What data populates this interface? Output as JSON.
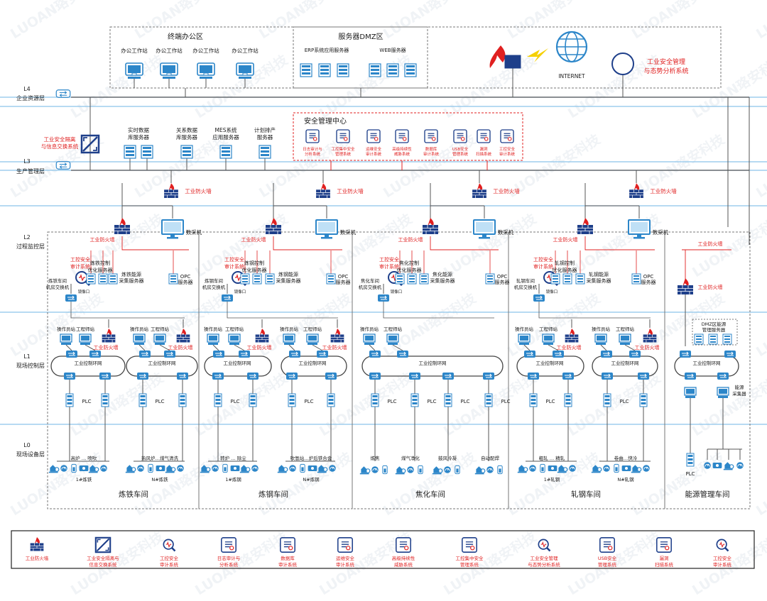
{
  "layers": {
    "l4": {
      "code": "L4",
      "name": "企业资源层"
    },
    "l3": {
      "code": "L3",
      "name": "生产管理层"
    },
    "l2": {
      "code": "L2",
      "name": "过程监控层"
    },
    "l1": {
      "code": "L1",
      "name": "现场控制层"
    },
    "l0": {
      "code": "L0",
      "name": "现场设备层"
    }
  },
  "top": {
    "office_zone": "终端办公区",
    "office_station": "办公工作站",
    "dmz_zone": "服务器DMZ区",
    "erp": "ERP系统应用服务器",
    "web": "WEB服务器",
    "internet": "INTERNET",
    "situation_1": "工业安全管理",
    "situation_2": "与态势分析系统"
  },
  "l3": {
    "isolation_1": "工业安全隔离",
    "isolation_2": "与信息交换系统",
    "rt1": "实时数据",
    "rt2": "库服务器",
    "rel1": "关系数据",
    "rel2": "库服务器",
    "mes1": "MES系统",
    "mes2": "应用服务器",
    "plan1": "计划排产",
    "plan2": "服务器"
  },
  "soc": {
    "title": "安全管理中心",
    "items": [
      {
        "l1": "日志审计与",
        "l2": "分析系统",
        "icon": "log-audit"
      },
      {
        "l1": "工控集中安全",
        "l2": "管理系统",
        "icon": "central-mgmt"
      },
      {
        "l1": "运维安全",
        "l2": "审计系统",
        "icon": "ops-audit"
      },
      {
        "l1": "高级持续性",
        "l2": "威胁系统",
        "icon": "apt"
      },
      {
        "l1": "数据库",
        "l2": "审计系统",
        "icon": "db-audit"
      },
      {
        "l1": "USB安全",
        "l2": "管理系统",
        "icon": "usb"
      },
      {
        "l1": "漏洞",
        "l2": "扫描系统",
        "icon": "vuln-scan"
      },
      {
        "l1": "工控安全",
        "l2": "审计系统",
        "icon": "ics-audit"
      }
    ]
  },
  "labels": {
    "firewall": "工业防火墙",
    "collector": "数采机",
    "audit1": "工控安全",
    "audit2": "审计系统",
    "mirror": "镜像口",
    "opc1": "OPC",
    "opc2": "服务器",
    "op": "操作员站",
    "eng": "工程师站",
    "ring": "工业控制环网",
    "plc": "PLC"
  },
  "workshops": [
    {
      "name": "炼铁车间",
      "sw1": "炼铁车间",
      "sw2": "机房交换机",
      "opt1": "炼铁控制",
      "opt2": "优化服务器",
      "en1": "炼铁能源",
      "en2": "采集服务器",
      "dev_a": "高炉 … 喷吹",
      "line_a": "1#炼铁",
      "dev_b": "热风炉…煤气清洗",
      "line_b": "N#炼铁"
    },
    {
      "name": "炼钢车间",
      "sw1": "炼钢车间",
      "sw2": "机房交换机",
      "opt1": "炼钢控制",
      "opt2": "优化服务器",
      "en1": "炼钢能源",
      "en2": "采集服务器",
      "dev_a": "转炉 … 除尘",
      "line_a": "1#炼钢",
      "dev_b": "吹氩站…炉后铁合金",
      "line_b": "N#炼钢"
    },
    {
      "name": "焦化车间",
      "sw1": "焦化车间",
      "sw2": "机房交换机",
      "opt1": "焦化控制",
      "opt2": "优化服务器",
      "en1": "焦化能源",
      "en2": "采集服务器",
      "dev_a": "炼焦",
      "dev_b": "煤气净化",
      "dev_c": "鼓风冷凝",
      "dev_d": "自动配焊"
    },
    {
      "name": "轧钢车间",
      "sw1": "轧钢车间",
      "sw2": "机房交换机",
      "opt1": "轧钢控制",
      "opt2": "优化服务器",
      "en1": "轧钢能源",
      "en2": "采集服务器",
      "dev_a": "粗轧 … 精轧",
      "line_a": "1#轧钢",
      "dev_b": "卷曲…快冷",
      "line_b": "N#轧钢"
    },
    {
      "name": "能源管理车间",
      "dmz1": "DMZ区能源",
      "dmz2": "管理服务器",
      "coll1": "能源",
      "coll2": "采集器"
    }
  ],
  "legend": [
    {
      "l1": "工业防火墙",
      "l2": "",
      "icon": "firewall"
    },
    {
      "l1": "工业安全隔离与",
      "l2": "信息交换系统",
      "icon": "isolation"
    },
    {
      "l1": "工控安全",
      "l2": "审计系统",
      "icon": "ics-audit"
    },
    {
      "l1": "日志审计与",
      "l2": "分析系统",
      "icon": "log-audit"
    },
    {
      "l1": "数据库",
      "l2": "审计系统",
      "icon": "db-audit"
    },
    {
      "l1": "运维安全",
      "l2": "审计系统",
      "icon": "ops-audit"
    },
    {
      "l1": "高级持续性",
      "l2": "威胁系统",
      "icon": "apt"
    },
    {
      "l1": "工控集中安全",
      "l2": "管理系统",
      "icon": "central-mgmt"
    },
    {
      "l1": "工业安全管理",
      "l2": "与态势分析系统",
      "icon": "situation"
    },
    {
      "l1": "USB安全",
      "l2": "管理系统",
      "icon": "usb"
    },
    {
      "l1": "漏洞",
      "l2": "扫描系统",
      "icon": "vuln-scan"
    },
    {
      "l1": "工控安全",
      "l2": "审计系统",
      "icon": "ics-audit"
    }
  ],
  "watermark": "LUOAN珞安科技",
  "colors": {
    "blue": "#2C86C9",
    "red": "#E02020",
    "dark": "#1a1a1a",
    "navy": "#1E3F8A"
  }
}
